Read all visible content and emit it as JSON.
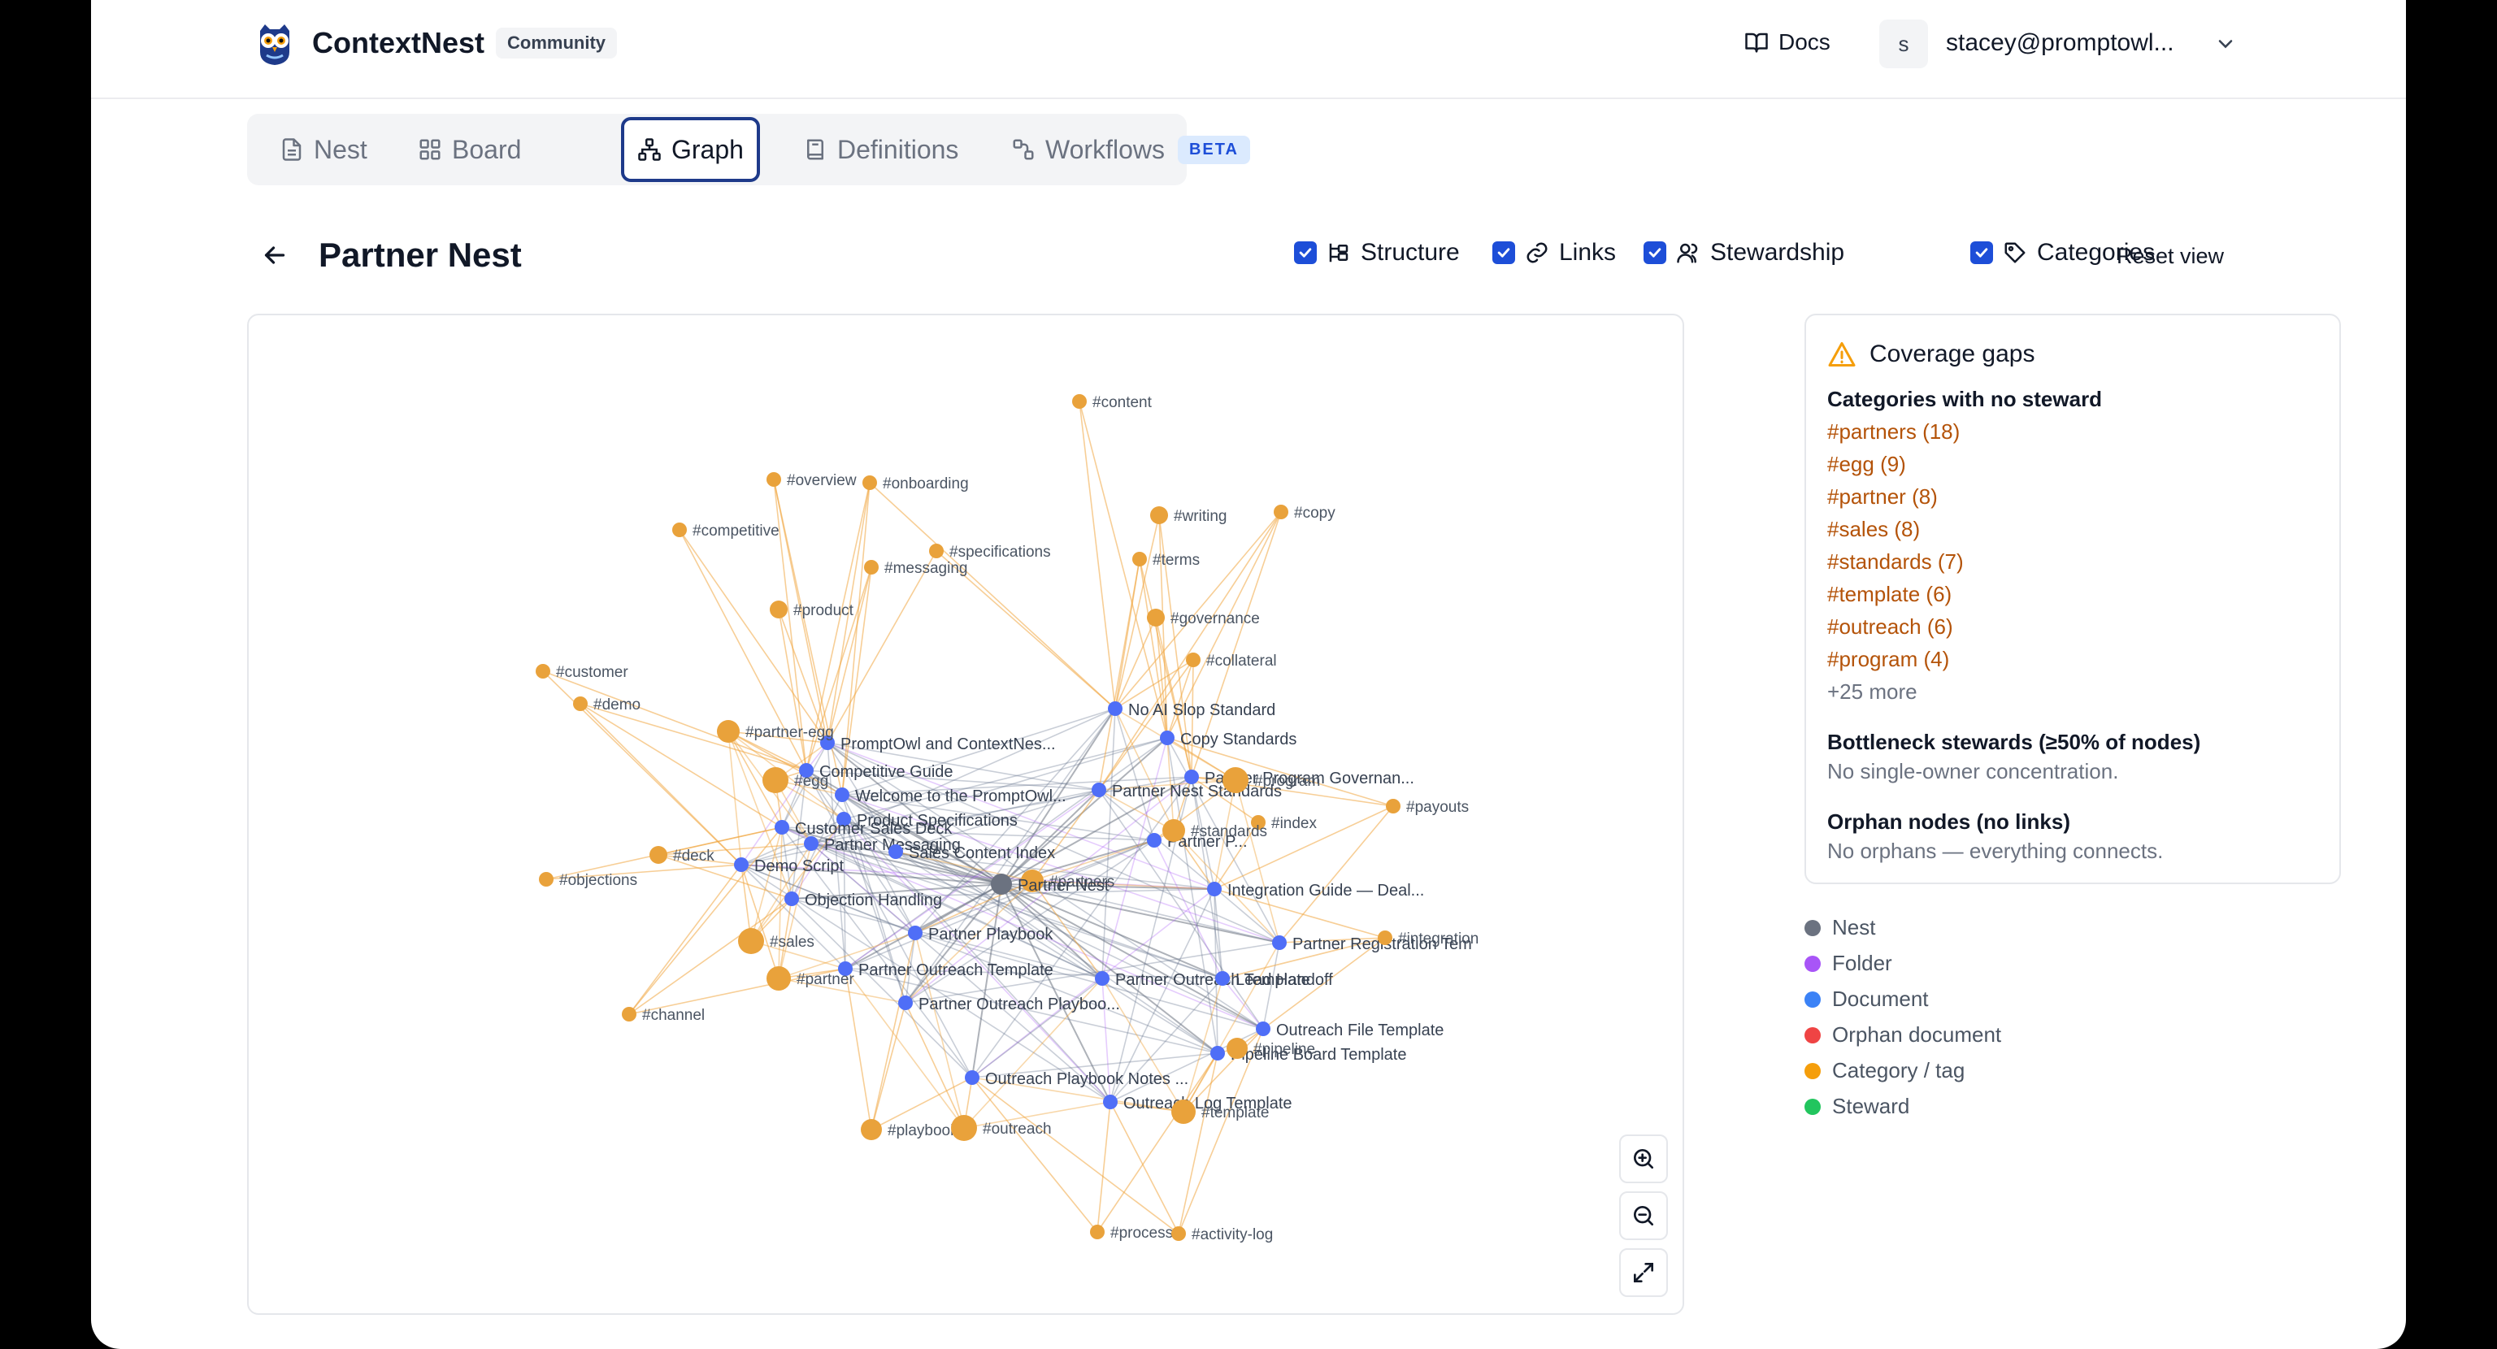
{
  "app": {
    "name": "ContextNest",
    "edition_badge": "Community"
  },
  "header": {
    "docs_label": "Docs",
    "user_initial": "s",
    "user_email": "stacey@promptowl..."
  },
  "tabs": [
    {
      "label": "Nest",
      "icon": "file-icon"
    },
    {
      "label": "Board",
      "icon": "grid-icon"
    },
    {
      "label": "Graph",
      "icon": "graph-icon",
      "active": true
    },
    {
      "label": "Definitions",
      "icon": "book-icon"
    },
    {
      "label": "Workflows",
      "icon": "workflow-icon",
      "badge": "BETA"
    }
  ],
  "page": {
    "title": "Partner Nest"
  },
  "toggles": [
    {
      "label": "Structure",
      "checked": true,
      "icon": "structure-icon"
    },
    {
      "label": "Links",
      "checked": true,
      "icon": "link-icon"
    },
    {
      "label": "Stewardship",
      "checked": true,
      "icon": "users-icon"
    },
    {
      "label": "Categories",
      "checked": true,
      "icon": "tag-icon"
    }
  ],
  "reset_view_label": "Reset view",
  "coverage": {
    "title": "Coverage gaps",
    "no_steward_heading": "Categories with no steward",
    "no_steward_items": [
      "#partners (18)",
      "#egg (9)",
      "#partner (8)",
      "#sales (8)",
      "#standards (7)",
      "#template (6)",
      "#outreach (6)",
      "#program (4)"
    ],
    "more_label": "+25 more",
    "bottleneck_heading": "Bottleneck stewards (≥50% of nodes)",
    "bottleneck_text": "No single-owner concentration.",
    "orphan_heading": "Orphan nodes (no links)",
    "orphan_text": "No orphans — everything connects."
  },
  "legend": [
    {
      "label": "Nest",
      "color": "#6b7280"
    },
    {
      "label": "Folder",
      "color": "#a855f7"
    },
    {
      "label": "Document",
      "color": "#3b82f6"
    },
    {
      "label": "Orphan document",
      "color": "#ef4444"
    },
    {
      "label": "Category / tag",
      "color": "#f59e0b"
    },
    {
      "label": "Steward",
      "color": "#22c55e"
    }
  ],
  "graph": {
    "colors": {
      "nest": "#6b7280",
      "document": "#4f6ef7",
      "category": "#e9a23b"
    },
    "nest_label": "Partner Nest",
    "documents": [
      "No AI Slop Standard",
      "PromptOwl and ContextNes...",
      "Copy Standards",
      "Competitive Guide",
      "Partner Program Governan...",
      "Welcome to the PromptOwl...",
      "Partner Nest Standards",
      "Product Specifications",
      "Customer Sales Deck",
      "Partner Messaging",
      "Partner P...",
      "Sales Content Index",
      "Demo Script",
      "Objection Handling",
      "Integration Guide — Deal...",
      "Partner Playbook",
      "Partner Registration Tem",
      "Partner Outreach Template",
      "Partner Outreach Template",
      "Lead Handoff",
      "Partner Outreach Playboo...",
      "Outreach File Template",
      "Pipeline Board Template",
      "Outreach Playbook Notes ...",
      "Outreach Log Template"
    ],
    "categories": [
      "#content",
      "#overview",
      "#onboarding",
      "#competitive",
      "#writing",
      "#copy",
      "#specifications",
      "#messaging",
      "#terms",
      "#product",
      "#governance",
      "#collateral",
      "#customer",
      "#demo",
      "#partner-egg",
      "#egg",
      "#program",
      "#payouts",
      "#index",
      "#standards",
      "#deck",
      "#objections",
      "#partners",
      "#integration",
      "#sales",
      "#partner",
      "#channel",
      "#pipeline",
      "#template",
      "#playbook",
      "#outreach",
      "#process",
      "#activity-log"
    ],
    "zoom_in_label": "zoom in",
    "zoom_out_label": "zoom out",
    "fit_label": "fit to screen"
  }
}
